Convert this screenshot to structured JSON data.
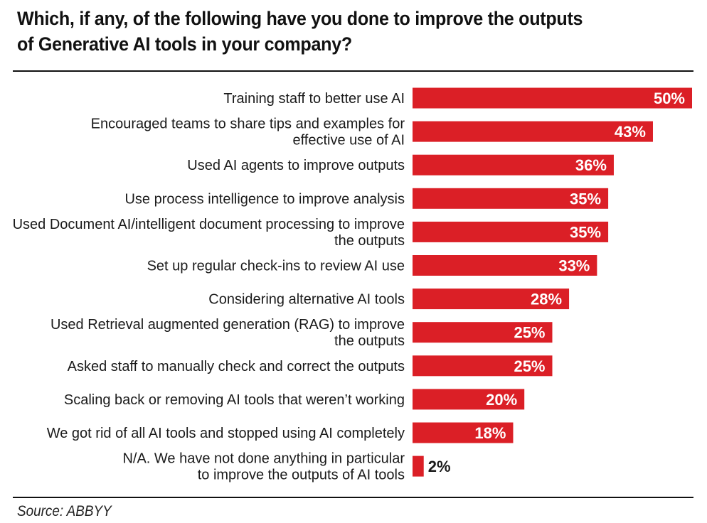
{
  "chart_data": {
    "type": "bar",
    "orientation": "horizontal",
    "title": "Which, if any, of the following have you done to improve the outputs of Generative AI tools in your company?",
    "title_lines": [
      "Which, if any, of the following have you done to improve the outputs",
      "of Generative AI tools in your company?"
    ],
    "xlabel": "",
    "ylabel": "",
    "xlim": [
      0,
      50
    ],
    "grid": false,
    "legend": "none",
    "bar_color": "#db1f26",
    "value_label_color_inside": "#ffffff",
    "value_label_color_outside": "#1a1a1a",
    "value_suffix": "%",
    "categories": [
      [
        "Training staff to better use AI"
      ],
      [
        "Encouraged teams to share tips and examples for",
        "effective use of AI"
      ],
      [
        "Used AI agents to improve outputs"
      ],
      [
        "Use process intelligence to improve analysis"
      ],
      [
        "Used Document AI/intelligent document processing to improve",
        "the outputs"
      ],
      [
        "Set up regular check-ins to review AI use"
      ],
      [
        "Considering alternative AI tools"
      ],
      [
        "Used Retrieval augmented generation (RAG) to improve",
        "the outputs"
      ],
      [
        "Asked staff to manually check and correct the outputs"
      ],
      [
        "Scaling back or removing AI tools that weren’t working"
      ],
      [
        "We got rid of all AI tools and stopped using AI completely"
      ],
      [
        "N/A. We have not done anything in particular",
        "to improve the outputs of AI tools"
      ]
    ],
    "values": [
      50,
      43,
      36,
      35,
      35,
      33,
      28,
      25,
      25,
      20,
      18,
      2
    ],
    "value_labels": [
      "50%",
      "43%",
      "36%",
      "35%",
      "35%",
      "33%",
      "28%",
      "25%",
      "25%",
      "20%",
      "18%",
      "2%"
    ],
    "source": "Source: ABBYY"
  }
}
